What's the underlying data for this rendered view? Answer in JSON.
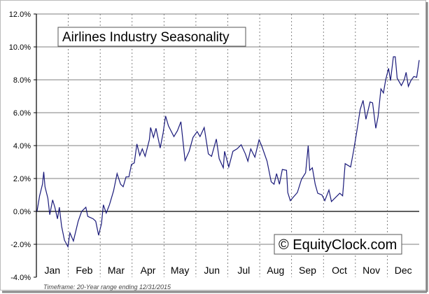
{
  "chart_data": {
    "type": "line",
    "title": "Airlines Industry Seasonality",
    "watermark": "© EquityClock.com",
    "footnote": "Timeframe: 20-Year range ending 12/31/2015",
    "xlabel": "",
    "ylabel": "",
    "ylim": [
      -4,
      12
    ],
    "xlim": [
      0,
      12
    ],
    "yticks": [
      -4,
      -2,
      0,
      2,
      4,
      6,
      8,
      10,
      12
    ],
    "ytick_labels": [
      "-4.0%",
      "-2.0%",
      "0.0%",
      "2.0%",
      "4.0%",
      "6.0%",
      "8.0%",
      "10.0%",
      "12.0%"
    ],
    "categories": [
      "Jan",
      "Feb",
      "Mar",
      "Apr",
      "May",
      "Jun",
      "Jul",
      "Aug",
      "Sep",
      "Oct",
      "Nov",
      "Dec"
    ],
    "grid": "horizontal solid, monthly dotted",
    "line_color": "#1a1a7a",
    "series": [
      {
        "name": "Airlines Industry",
        "x": [
          0.02,
          0.1,
          0.19,
          0.23,
          0.27,
          0.36,
          0.42,
          0.51,
          0.58,
          0.66,
          0.72,
          0.79,
          0.88,
          0.99,
          1.05,
          1.16,
          1.31,
          1.42,
          1.55,
          1.61,
          1.78,
          1.86,
          1.95,
          2.04,
          2.1,
          2.19,
          2.29,
          2.42,
          2.53,
          2.64,
          2.72,
          2.81,
          2.9,
          2.98,
          3.07,
          3.15,
          3.24,
          3.32,
          3.41,
          3.54,
          3.58,
          3.67,
          3.75,
          3.88,
          3.97,
          4.05,
          4.14,
          4.31,
          4.42,
          4.53,
          4.66,
          4.79,
          4.91,
          5.04,
          5.13,
          5.26,
          5.39,
          5.49,
          5.64,
          5.73,
          5.86,
          5.9,
          6.03,
          6.16,
          6.29,
          6.42,
          6.55,
          6.63,
          6.72,
          6.85,
          6.98,
          7.06,
          7.23,
          7.36,
          7.45,
          7.53,
          7.62,
          7.71,
          7.84,
          7.88,
          7.96,
          8.18,
          8.31,
          8.44,
          8.52,
          8.57,
          8.65,
          8.74,
          8.82,
          8.95,
          9.04,
          9.17,
          9.25,
          9.51,
          9.6,
          9.68,
          9.85,
          9.94,
          10.03,
          10.15,
          10.24,
          10.33,
          10.46,
          10.54,
          10.64,
          10.71,
          10.8,
          10.88,
          10.95,
          11.04,
          11.1,
          11.19,
          11.25,
          11.31,
          11.44,
          11.53,
          11.59,
          11.66,
          11.74,
          11.83,
          11.92,
          12.0
        ],
        "values": [
          0,
          0.95,
          1.65,
          2.4,
          1.5,
          0.8,
          -0.2,
          0.7,
          0.25,
          -0.45,
          0.25,
          -0.9,
          -1.75,
          -2.15,
          -1.3,
          -1.8,
          -0.6,
          0,
          0.25,
          -0.3,
          -0.45,
          -0.6,
          -1.45,
          -0.75,
          0.4,
          -0.1,
          0.4,
          1.25,
          2.3,
          1.65,
          1.5,
          2.1,
          2.1,
          2.85,
          2.95,
          4.1,
          3.4,
          3.8,
          3.35,
          4.35,
          5.1,
          4.5,
          5.05,
          3.85,
          4.75,
          5.8,
          5.2,
          4.55,
          4.9,
          5.45,
          3.1,
          3.65,
          4.5,
          4.85,
          4.55,
          5.1,
          3.5,
          3.35,
          4.4,
          3.2,
          2.65,
          3.65,
          2.7,
          3.65,
          3.8,
          4.05,
          3.5,
          3.05,
          3.8,
          3.3,
          4.35,
          4.0,
          3.05,
          1.8,
          1.65,
          2.3,
          1.65,
          2.55,
          2.5,
          1.15,
          0.65,
          1.15,
          1.95,
          2.35,
          4.0,
          2.5,
          2.65,
          1.65,
          1.1,
          1.0,
          0.65,
          1.3,
          0.6,
          1.1,
          0.95,
          2.9,
          2.7,
          3.65,
          4.7,
          6.2,
          6.75,
          5.6,
          6.65,
          6.6,
          5.05,
          5.75,
          7.45,
          7.2,
          8.0,
          8.7,
          7.95,
          9.4,
          9.4,
          8.1,
          7.65,
          8.0,
          8.45,
          7.6,
          7.95,
          8.2,
          8.15,
          9.2
        ]
      }
    ]
  }
}
